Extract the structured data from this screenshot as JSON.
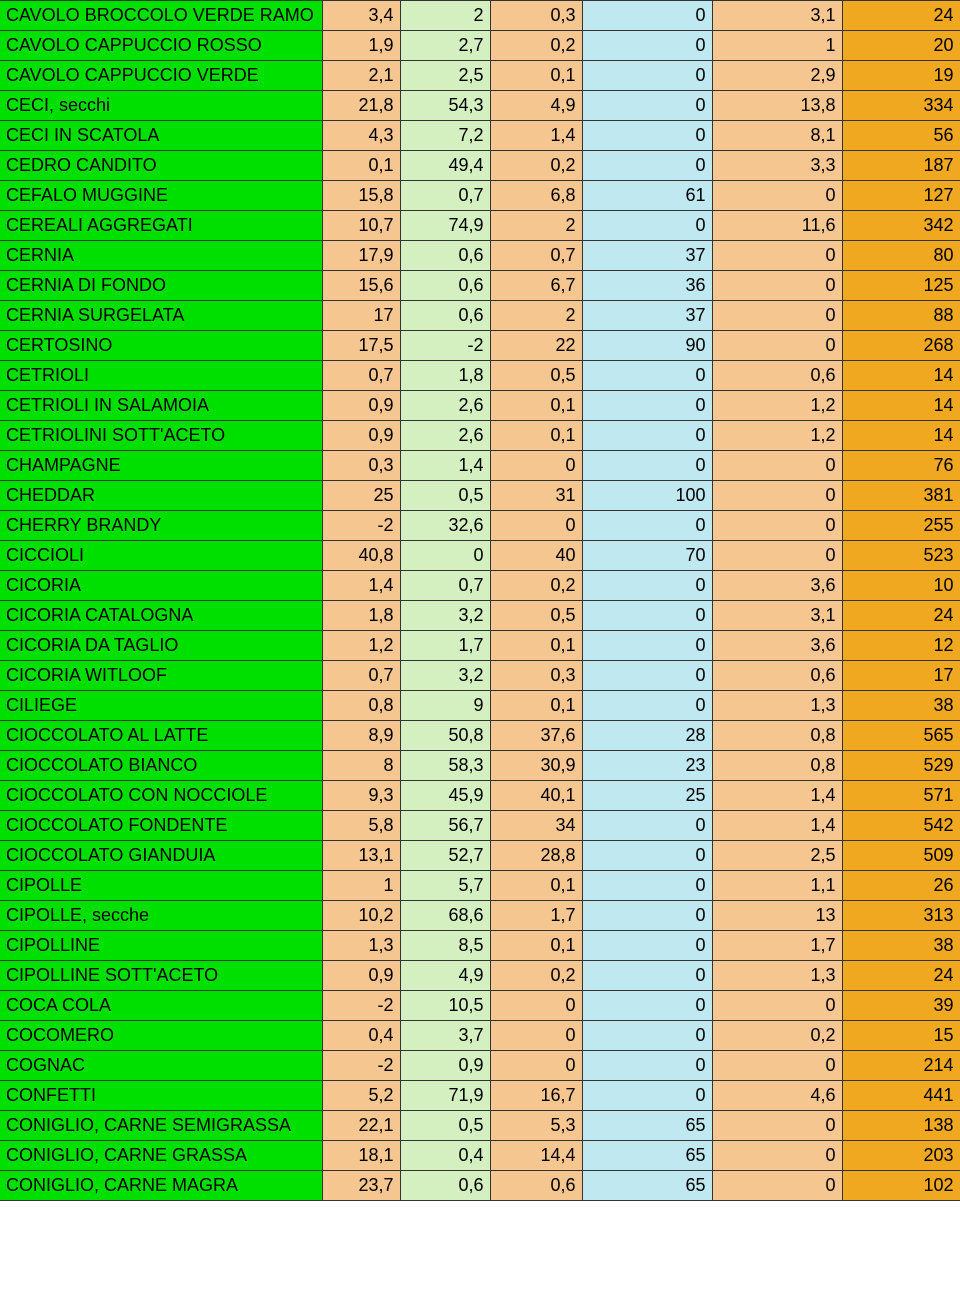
{
  "table": {
    "col_colors": [
      "#00e000",
      "#f5c690",
      "#d4f0c0",
      "#f5c690",
      "#c0e8f0",
      "#f5c690",
      "#f0a820"
    ],
    "text_color": "#000000",
    "border_color": "#333333",
    "font_family": "Comic Sans MS",
    "font_size": 18,
    "rows": [
      {
        "name": "CAVOLO BROCCOLO VERDE RAMO",
        "v": [
          "3,4",
          "2",
          "0,3",
          "0",
          "3,1",
          "24"
        ]
      },
      {
        "name": "CAVOLO CAPPUCCIO ROSSO",
        "v": [
          "1,9",
          "2,7",
          "0,2",
          "0",
          "1",
          "20"
        ]
      },
      {
        "name": "CAVOLO CAPPUCCIO VERDE",
        "v": [
          "2,1",
          "2,5",
          "0,1",
          "0",
          "2,9",
          "19"
        ]
      },
      {
        "name": "CECI, secchi",
        "v": [
          "21,8",
          "54,3",
          "4,9",
          "0",
          "13,8",
          "334"
        ]
      },
      {
        "name": "CECI IN SCATOLA",
        "v": [
          "4,3",
          "7,2",
          "1,4",
          "0",
          "8,1",
          "56"
        ]
      },
      {
        "name": "CEDRO CANDITO",
        "v": [
          "0,1",
          "49,4",
          "0,2",
          "0",
          "3,3",
          "187"
        ]
      },
      {
        "name": "CEFALO MUGGINE",
        "v": [
          "15,8",
          "0,7",
          "6,8",
          "61",
          "0",
          "127"
        ]
      },
      {
        "name": "CEREALI AGGREGATI",
        "v": [
          "10,7",
          "74,9",
          "2",
          "0",
          "11,6",
          "342"
        ]
      },
      {
        "name": "CERNIA",
        "v": [
          "17,9",
          "0,6",
          "0,7",
          "37",
          "0",
          "80"
        ]
      },
      {
        "name": "CERNIA DI FONDO",
        "v": [
          "15,6",
          "0,6",
          "6,7",
          "36",
          "0",
          "125"
        ]
      },
      {
        "name": "CERNIA SURGELATA",
        "v": [
          "17",
          "0,6",
          "2",
          "37",
          "0",
          "88"
        ]
      },
      {
        "name": "CERTOSINO",
        "v": [
          "17,5",
          "-2",
          "22",
          "90",
          "0",
          "268"
        ]
      },
      {
        "name": "CETRIOLI",
        "v": [
          "0,7",
          "1,8",
          "0,5",
          "0",
          "0,6",
          "14"
        ]
      },
      {
        "name": "CETRIOLI IN SALAMOIA",
        "v": [
          "0,9",
          "2,6",
          "0,1",
          "0",
          "1,2",
          "14"
        ]
      },
      {
        "name": "CETRIOLINI SOTT'ACETO",
        "v": [
          "0,9",
          "2,6",
          "0,1",
          "0",
          "1,2",
          "14"
        ]
      },
      {
        "name": "CHAMPAGNE",
        "v": [
          "0,3",
          "1,4",
          "0",
          "0",
          "0",
          "76"
        ]
      },
      {
        "name": "CHEDDAR",
        "v": [
          "25",
          "0,5",
          "31",
          "100",
          "0",
          "381"
        ]
      },
      {
        "name": "CHERRY BRANDY",
        "v": [
          "-2",
          "32,6",
          "0",
          "0",
          "0",
          "255"
        ]
      },
      {
        "name": "CICCIOLI",
        "v": [
          "40,8",
          "0",
          "40",
          "70",
          "0",
          "523"
        ]
      },
      {
        "name": "CICORIA",
        "v": [
          "1,4",
          "0,7",
          "0,2",
          "0",
          "3,6",
          "10"
        ]
      },
      {
        "name": "CICORIA CATALOGNA",
        "v": [
          "1,8",
          "3,2",
          "0,5",
          "0",
          "3,1",
          "24"
        ]
      },
      {
        "name": "CICORIA DA TAGLIO",
        "v": [
          "1,2",
          "1,7",
          "0,1",
          "0",
          "3,6",
          "12"
        ]
      },
      {
        "name": "CICORIA WITLOOF",
        "v": [
          "0,7",
          "3,2",
          "0,3",
          "0",
          "0,6",
          "17"
        ]
      },
      {
        "name": "CILIEGE",
        "v": [
          "0,8",
          "9",
          "0,1",
          "0",
          "1,3",
          "38"
        ]
      },
      {
        "name": "CIOCCOLATO AL LATTE",
        "v": [
          "8,9",
          "50,8",
          "37,6",
          "28",
          "0,8",
          "565"
        ]
      },
      {
        "name": "CIOCCOLATO BIANCO",
        "v": [
          "8",
          "58,3",
          "30,9",
          "23",
          "0,8",
          "529"
        ]
      },
      {
        "name": "CIOCCOLATO CON NOCCIOLE",
        "v": [
          "9,3",
          "45,9",
          "40,1",
          "25",
          "1,4",
          "571"
        ]
      },
      {
        "name": "CIOCCOLATO FONDENTE",
        "v": [
          "5,8",
          "56,7",
          "34",
          "0",
          "1,4",
          "542"
        ]
      },
      {
        "name": "CIOCCOLATO GIANDUIA",
        "v": [
          "13,1",
          "52,7",
          "28,8",
          "0",
          "2,5",
          "509"
        ]
      },
      {
        "name": "CIPOLLE",
        "v": [
          "1",
          "5,7",
          "0,1",
          "0",
          "1,1",
          "26"
        ]
      },
      {
        "name": "CIPOLLE, secche",
        "v": [
          "10,2",
          "68,6",
          "1,7",
          "0",
          "13",
          "313"
        ]
      },
      {
        "name": "CIPOLLINE",
        "v": [
          "1,3",
          "8,5",
          "0,1",
          "0",
          "1,7",
          "38"
        ]
      },
      {
        "name": "CIPOLLINE SOTT'ACETO",
        "v": [
          "0,9",
          "4,9",
          "0,2",
          "0",
          "1,3",
          "24"
        ]
      },
      {
        "name": "COCA COLA",
        "v": [
          "-2",
          "10,5",
          "0",
          "0",
          "0",
          "39"
        ]
      },
      {
        "name": "COCOMERO",
        "v": [
          "0,4",
          "3,7",
          "0",
          "0",
          "0,2",
          "15"
        ]
      },
      {
        "name": "COGNAC",
        "v": [
          "-2",
          "0,9",
          "0",
          "0",
          "0",
          "214"
        ]
      },
      {
        "name": "CONFETTI",
        "v": [
          "5,2",
          "71,9",
          "16,7",
          "0",
          "4,6",
          "441"
        ]
      },
      {
        "name": "CONIGLIO, CARNE SEMIGRASSA",
        "v": [
          "22,1",
          "0,5",
          "5,3",
          "65",
          "0",
          "138"
        ]
      },
      {
        "name": "CONIGLIO, CARNE GRASSA",
        "v": [
          "18,1",
          "0,4",
          "14,4",
          "65",
          "0",
          "203"
        ]
      },
      {
        "name": "CONIGLIO, CARNE MAGRA",
        "v": [
          "23,7",
          "0,6",
          "0,6",
          "65",
          "0",
          "102"
        ]
      }
    ]
  }
}
